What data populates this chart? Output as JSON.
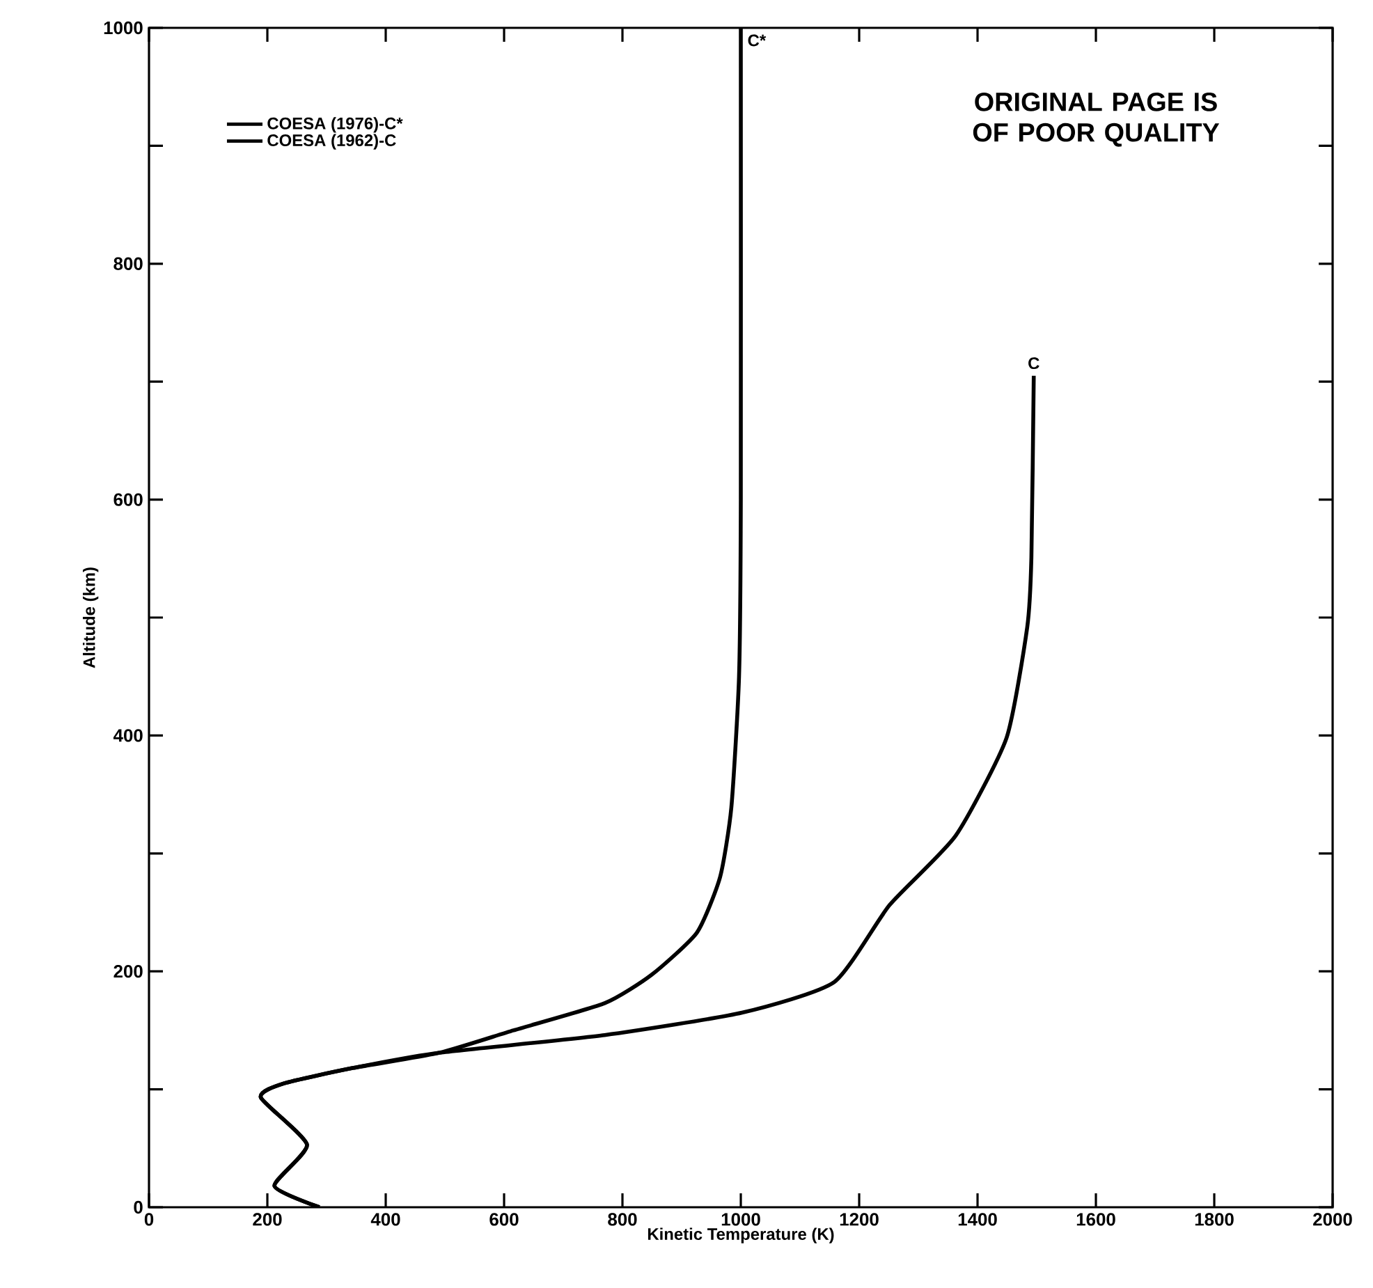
{
  "chart_data": {
    "type": "line",
    "xlabel": "Kinetic Temperature (K)",
    "ylabel": "Altitude (km)",
    "xlim": [
      0,
      2000
    ],
    "ylim": [
      0,
      1000
    ],
    "xticks": [
      0,
      200,
      400,
      600,
      800,
      1000,
      1200,
      1400,
      1600,
      1800,
      2000
    ],
    "yticks": [
      0,
      {
        "value": 100,
        "label": null
      },
      200,
      {
        "value": 300,
        "label": null
      },
      400,
      {
        "value": 500,
        "label": null
      },
      600,
      {
        "value": 700,
        "label": null
      },
      800,
      {
        "value": 900,
        "label": null
      },
      1000
    ],
    "grid": false,
    "legend": "top left",
    "marker": "none",
    "line_style": "solid",
    "series": [
      {
        "name": "COESA (1976)-C*",
        "color": "#000000",
        "x": [
          288,
          212,
          267,
          189,
          228,
          344,
          491,
          616,
          770,
          849,
          926,
          965,
          984,
          997,
          1000,
          1000
        ],
        "values": [
          0,
          18,
          53,
          93,
          105,
          118,
          131,
          150,
          173,
          197,
          233,
          280,
          339,
          450,
          600,
          1000
        ]
      },
      {
        "name": "COESA (1962)-C",
        "color": "#000000",
        "x": [
          288,
          212,
          267,
          189,
          228,
          344,
          491,
          770,
          1002,
          1158,
          1251,
          1363,
          1449,
          1484,
          1491,
          1495
        ],
        "values": [
          0,
          18,
          53,
          93,
          105,
          118,
          131,
          146,
          165,
          191,
          256,
          315,
          398,
          492,
          551,
          705
        ]
      }
    ],
    "annotations": [
      "C*",
      "C",
      "ORIGINAL PAGE IS OF POOR QUALITY"
    ]
  }
}
